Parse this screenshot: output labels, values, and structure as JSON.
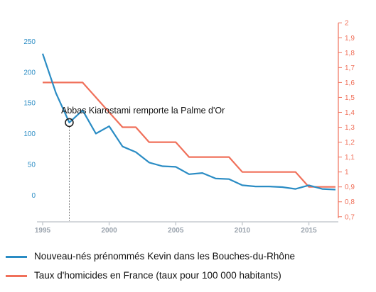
{
  "chart_data": {
    "type": "line",
    "title": "",
    "x": [
      1995,
      1996,
      1997,
      1998,
      1999,
      2000,
      2001,
      2002,
      2003,
      2004,
      2005,
      2006,
      2007,
      2008,
      2009,
      2010,
      2011,
      2012,
      2013,
      2014,
      2015,
      2016,
      2017
    ],
    "xlim": [
      1995,
      2017
    ],
    "x_ticks": [
      "1995",
      "2000",
      "2005",
      "2010",
      "2015"
    ],
    "y_left": {
      "ylim": [
        -40,
        285
      ],
      "ticks": [
        "0",
        "50",
        "100",
        "150",
        "200",
        "250"
      ],
      "color": "#2a8cc4"
    },
    "y_right": {
      "ylim": [
        0.68,
        2.02
      ],
      "ticks": [
        "0,7",
        "0,8",
        "0,9",
        "1",
        "1,1",
        "1,2",
        "1,3",
        "1,4",
        "1,5",
        "1,6",
        "1,7",
        "1,8",
        "1,9",
        "2"
      ],
      "color": "#f0705a"
    },
    "series": [
      {
        "name": "Nouveau-nés prénommés Kevin dans les Bouches-du-Rhône",
        "axis": "left",
        "color": "#2a8cc4",
        "type": "line",
        "points": [
          [
            1995,
            230
          ],
          [
            1996,
            166
          ],
          [
            1997,
            118
          ],
          [
            1998,
            138
          ],
          [
            1999,
            100
          ],
          [
            2000,
            112
          ],
          [
            2001,
            79
          ],
          [
            2002,
            70
          ],
          [
            2003,
            53
          ],
          [
            2004,
            47
          ],
          [
            2005,
            46
          ],
          [
            2006,
            34
          ],
          [
            2007,
            36
          ],
          [
            2008,
            27
          ],
          [
            2009,
            26
          ],
          [
            2010,
            16
          ],
          [
            2011,
            14
          ],
          [
            2012,
            14
          ],
          [
            2013,
            13
          ],
          [
            2014,
            10
          ],
          [
            2015,
            16
          ],
          [
            2016,
            10
          ],
          [
            2017,
            9
          ]
        ]
      },
      {
        "name": "Taux d'homicides en France (taux pour 100 000 habitants)",
        "axis": "right",
        "color": "#f0705a",
        "type": "step",
        "points": [
          [
            1995,
            1.6
          ],
          [
            1998,
            1.6
          ],
          [
            1999,
            1.5
          ],
          [
            2000,
            1.4
          ],
          [
            2001,
            1.3
          ],
          [
            2002,
            1.3
          ],
          [
            2003,
            1.2
          ],
          [
            2004,
            1.2
          ],
          [
            2005,
            1.2
          ],
          [
            2006,
            1.1
          ],
          [
            2007,
            1.1
          ],
          [
            2008,
            1.1
          ],
          [
            2009,
            1.1
          ],
          [
            2010,
            1.0
          ],
          [
            2011,
            1.0
          ],
          [
            2012,
            1.0
          ],
          [
            2013,
            1.0
          ],
          [
            2014,
            1.0
          ],
          [
            2015,
            0.9
          ],
          [
            2016,
            0.9
          ],
          [
            2017,
            0.9
          ]
        ]
      }
    ],
    "annotation": {
      "text": "Abbas Kiarostami remporte la Palme d'Or",
      "x": 1997,
      "y": 118,
      "axis": "left"
    },
    "grid": false,
    "legend_position": "bottom"
  }
}
